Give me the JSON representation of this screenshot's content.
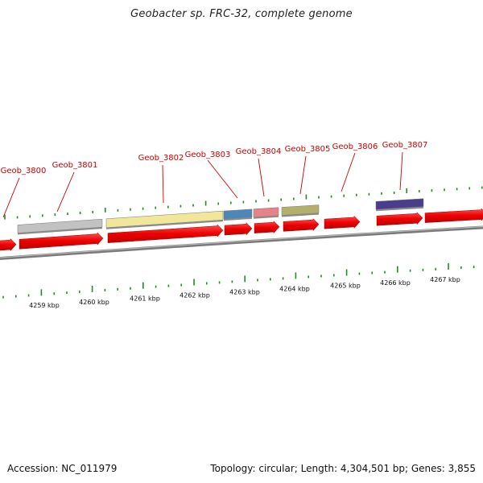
{
  "title": "Geobacter sp. FRC-32, complete genome",
  "footer": {
    "accession": "Accession: NC_011979",
    "summary": "Topology: circular; Length: 4,304,501 bp; Genes: 3,855"
  },
  "colors": {
    "gene_arrow": "#ee0000",
    "backbone": "#888888",
    "gene_label": "#cc0000",
    "tick": "#228b22"
  },
  "gene_labels": [
    {
      "name": "Geob_3800"
    },
    {
      "name": "Geob_3801"
    },
    {
      "name": "Geob_3802"
    },
    {
      "name": "Geob_3803"
    },
    {
      "name": "Geob_3804"
    },
    {
      "name": "Geob_3805"
    },
    {
      "name": "Geob_3806"
    },
    {
      "name": "Geob_3807"
    }
  ],
  "scale_labels": [
    "4259 kbp",
    "4260 kbp",
    "4261 kbp",
    "4262 kbp",
    "4263 kbp",
    "4264 kbp",
    "4265 kbp",
    "4266 kbp",
    "4267 kbp"
  ],
  "features": [
    {
      "name": "gray-feature",
      "color": "#c2c2c2"
    },
    {
      "name": "yellow-feature",
      "color": "#f1e79a"
    },
    {
      "name": "blue-feature",
      "color": "#4f86b9"
    },
    {
      "name": "pink-feature",
      "color": "#e8828a"
    },
    {
      "name": "olive-feature",
      "color": "#b4b06a"
    },
    {
      "name": "purple-feature",
      "color": "#4a3d8c"
    }
  ]
}
